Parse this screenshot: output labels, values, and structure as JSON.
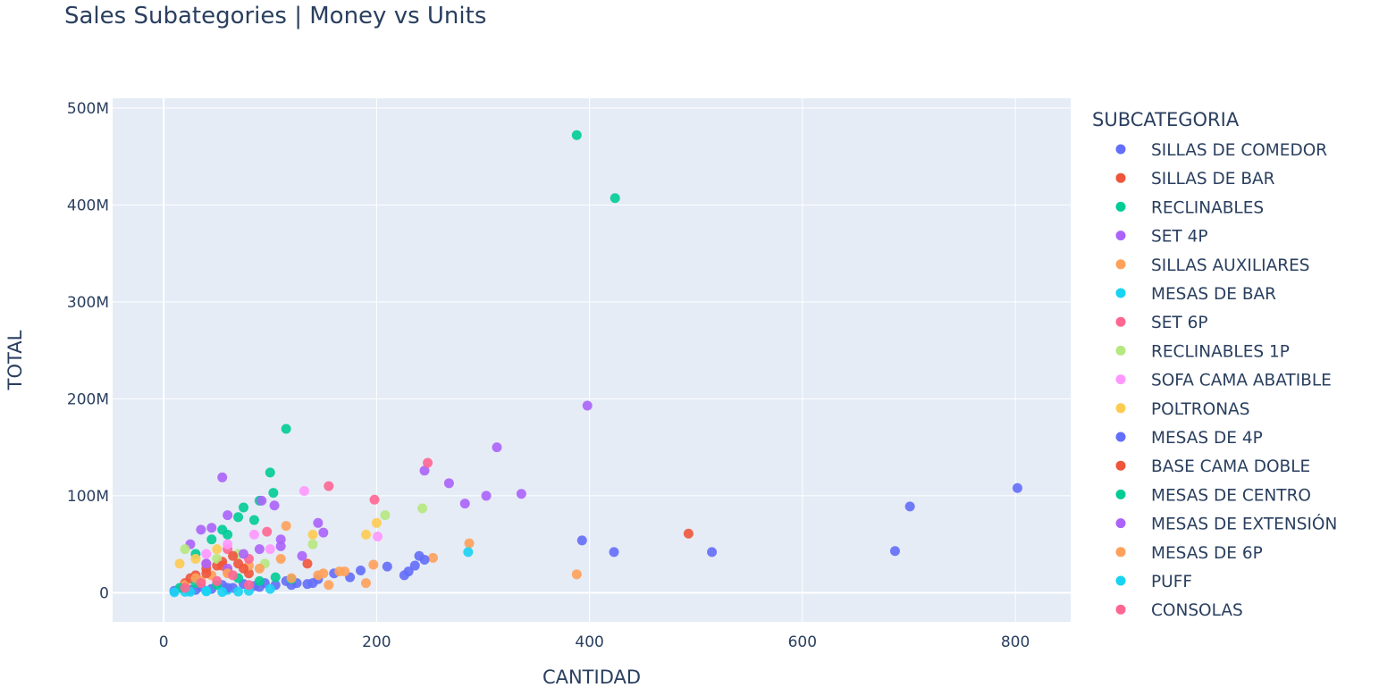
{
  "chart_data": {
    "type": "scatter",
    "title": "Sales Subategories | Money vs Units",
    "xlabel": "CANTIDAD",
    "ylabel": "TOTAL",
    "xlim": [
      -48,
      852
    ],
    "ylim": [
      -30000000,
      510000000
    ],
    "xticks": [
      {
        "value": 0,
        "label": "0"
      },
      {
        "value": 200,
        "label": "200"
      },
      {
        "value": 400,
        "label": "400"
      },
      {
        "value": 600,
        "label": "600"
      },
      {
        "value": 800,
        "label": "800"
      }
    ],
    "yticks": [
      {
        "value": 0,
        "label": "0"
      },
      {
        "value": 100000000,
        "label": "100M"
      },
      {
        "value": 200000000,
        "label": "200M"
      },
      {
        "value": 300000000,
        "label": "300M"
      },
      {
        "value": 400000000,
        "label": "400M"
      },
      {
        "value": 500000000,
        "label": "500M"
      }
    ],
    "grid": true,
    "plot_background": "#e5ecf6",
    "legend_title": "SUBCATEGORIA",
    "legend_position": "right",
    "series": [
      {
        "name": "SILLAS DE COMEDOR",
        "color": "#636efa",
        "points": [
          [
            10,
            2000000
          ],
          [
            18,
            5000000
          ],
          [
            25,
            3000000
          ],
          [
            35,
            6000000
          ],
          [
            45,
            4000000
          ],
          [
            55,
            8000000
          ],
          [
            65,
            5000000
          ],
          [
            75,
            9000000
          ],
          [
            85,
            7000000
          ],
          [
            95,
            10000000
          ],
          [
            105,
            8000000
          ],
          [
            115,
            12000000
          ],
          [
            125,
            10000000
          ],
          [
            135,
            9000000
          ],
          [
            145,
            14000000
          ],
          [
            160,
            20000000
          ],
          [
            175,
            16000000
          ]
        ]
      },
      {
        "name": "SILLAS DE BAR",
        "color": "#ef553b",
        "points": [
          [
            20,
            10000000
          ],
          [
            30,
            18000000
          ],
          [
            40,
            25000000
          ],
          [
            50,
            28000000
          ],
          [
            55,
            32000000
          ],
          [
            60,
            22000000
          ],
          [
            70,
            30000000
          ],
          [
            80,
            20000000
          ],
          [
            135,
            30000000
          ],
          [
            493,
            61000000
          ]
        ]
      },
      {
        "name": "RECLINABLES",
        "color": "#00cc96",
        "points": [
          [
            30,
            40000000
          ],
          [
            45,
            55000000
          ],
          [
            55,
            65000000
          ],
          [
            60,
            60000000
          ],
          [
            70,
            78000000
          ],
          [
            75,
            88000000
          ],
          [
            85,
            75000000
          ],
          [
            90,
            95000000
          ],
          [
            100,
            124000000
          ],
          [
            103,
            103000000
          ],
          [
            115,
            169000000
          ],
          [
            388,
            472000000
          ],
          [
            424,
            407000000
          ]
        ]
      },
      {
        "name": "SET 4P",
        "color": "#ab63fa",
        "points": [
          [
            25,
            50000000
          ],
          [
            35,
            65000000
          ],
          [
            45,
            67000000
          ],
          [
            55,
            119000000
          ],
          [
            60,
            80000000
          ],
          [
            92,
            95000000
          ],
          [
            104,
            90000000
          ],
          [
            110,
            55000000
          ],
          [
            150,
            62000000
          ],
          [
            245,
            126000000
          ],
          [
            268,
            113000000
          ],
          [
            283,
            92000000
          ],
          [
            303,
            100000000
          ],
          [
            313,
            150000000
          ],
          [
            336,
            102000000
          ],
          [
            398,
            193000000
          ]
        ]
      },
      {
        "name": "SILLAS AUXILIARES",
        "color": "#ffa15a",
        "points": [
          [
            20,
            8000000
          ],
          [
            35,
            12000000
          ],
          [
            45,
            18000000
          ],
          [
            60,
            22000000
          ],
          [
            80,
            28000000
          ],
          [
            110,
            35000000
          ],
          [
            115,
            69000000
          ],
          [
            145,
            18000000
          ],
          [
            155,
            8000000
          ],
          [
            165,
            22000000
          ],
          [
            190,
            10000000
          ],
          [
            197,
            29000000
          ],
          [
            253,
            36000000
          ],
          [
            287,
            51000000
          ],
          [
            388,
            19000000
          ]
        ]
      },
      {
        "name": "MESAS DE BAR",
        "color": "#19d3f3",
        "points": [
          [
            20,
            1000000
          ],
          [
            40,
            2000000
          ],
          [
            60,
            3000000
          ],
          [
            80,
            2000000
          ],
          [
            100,
            4000000
          ],
          [
            286,
            42000000
          ]
        ]
      },
      {
        "name": "SET 6P",
        "color": "#ff6692",
        "points": [
          [
            40,
            30000000
          ],
          [
            60,
            45000000
          ],
          [
            80,
            35000000
          ],
          [
            97,
            63000000
          ],
          [
            155,
            110000000
          ],
          [
            198,
            96000000
          ],
          [
            248,
            134000000
          ]
        ]
      },
      {
        "name": "RECLINABLES 1P",
        "color": "#b6e880",
        "points": [
          [
            20,
            45000000
          ],
          [
            50,
            35000000
          ],
          [
            70,
            40000000
          ],
          [
            95,
            30000000
          ],
          [
            140,
            50000000
          ],
          [
            208,
            80000000
          ],
          [
            243,
            87000000
          ]
        ]
      },
      {
        "name": "SOFA CAMA ABATIBLE",
        "color": "#ff97ff",
        "points": [
          [
            40,
            40000000
          ],
          [
            60,
            50000000
          ],
          [
            85,
            60000000
          ],
          [
            100,
            45000000
          ],
          [
            132,
            105000000
          ],
          [
            201,
            58000000
          ]
        ]
      },
      {
        "name": "POLTRONAS",
        "color": "#fecb52",
        "points": [
          [
            15,
            30000000
          ],
          [
            30,
            35000000
          ],
          [
            50,
            45000000
          ],
          [
            140,
            60000000
          ],
          [
            190,
            60000000
          ],
          [
            200,
            72000000
          ]
        ]
      },
      {
        "name": "MESAS DE 4P",
        "color": "#636efa",
        "points": [
          [
            30,
            3000000
          ],
          [
            60,
            5000000
          ],
          [
            90,
            6000000
          ],
          [
            120,
            8000000
          ],
          [
            140,
            10000000
          ],
          [
            185,
            23000000
          ],
          [
            210,
            27000000
          ],
          [
            226,
            18000000
          ],
          [
            230,
            22000000
          ],
          [
            236,
            28000000
          ],
          [
            240,
            38000000
          ],
          [
            245,
            34000000
          ],
          [
            393,
            54000000
          ],
          [
            423,
            42000000
          ],
          [
            515,
            42000000
          ],
          [
            687,
            43000000
          ],
          [
            701,
            89000000
          ],
          [
            802,
            108000000
          ]
        ]
      },
      {
        "name": "BASE CAMA DOBLE",
        "color": "#ef553b",
        "points": [
          [
            25,
            15000000
          ],
          [
            40,
            20000000
          ],
          [
            55,
            28000000
          ],
          [
            65,
            38000000
          ],
          [
            75,
            25000000
          ]
        ]
      },
      {
        "name": "MESAS DE CENTRO",
        "color": "#00cc96",
        "points": [
          [
            15,
            5000000
          ],
          [
            30,
            10000000
          ],
          [
            50,
            8000000
          ],
          [
            70,
            15000000
          ],
          [
            90,
            12000000
          ],
          [
            105,
            16000000
          ],
          [
            120,
            14000000
          ]
        ]
      },
      {
        "name": "MESAS DE EXTENSIÓN",
        "color": "#ab63fa",
        "points": [
          [
            40,
            30000000
          ],
          [
            60,
            25000000
          ],
          [
            75,
            40000000
          ],
          [
            90,
            45000000
          ],
          [
            110,
            48000000
          ],
          [
            130,
            38000000
          ],
          [
            145,
            72000000
          ]
        ]
      },
      {
        "name": "MESAS DE 6P",
        "color": "#ffa15a",
        "points": [
          [
            30,
            15000000
          ],
          [
            60,
            20000000
          ],
          [
            90,
            25000000
          ],
          [
            120,
            15000000
          ],
          [
            150,
            20000000
          ],
          [
            170,
            22000000
          ]
        ]
      },
      {
        "name": "PUFF",
        "color": "#19d3f3",
        "points": [
          [
            10,
            500000
          ],
          [
            25,
            1000000
          ],
          [
            40,
            1500000
          ],
          [
            55,
            800000
          ],
          [
            70,
            1200000
          ]
        ]
      },
      {
        "name": "CONSOLAS",
        "color": "#ff6692",
        "points": [
          [
            20,
            5000000
          ],
          [
            35,
            10000000
          ],
          [
            50,
            12000000
          ],
          [
            65,
            18000000
          ],
          [
            80,
            8000000
          ]
        ]
      }
    ]
  }
}
